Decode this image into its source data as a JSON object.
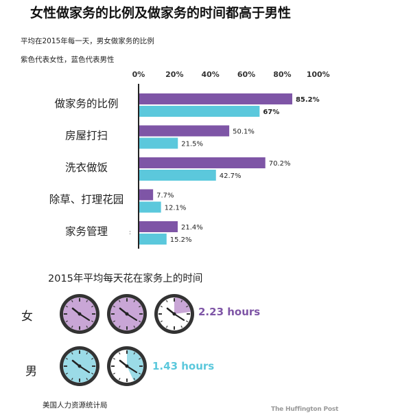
{
  "title": "女性做家务的比例及做家务的时间都高于男性",
  "subtitle_1": "平均在2015年每一天，男女做家务的比例",
  "subtitle_2": "紫色代表女性，蓝色代表男性",
  "stray_mark": ":",
  "colors": {
    "female": "#7e55a6",
    "male": "#5bc8dc",
    "axis": "#222222",
    "clock_female": "#c9a6d6",
    "clock_male": "#9bdbe7"
  },
  "chart_data": {
    "type": "bar",
    "orientation": "horizontal",
    "xlim": [
      0,
      100
    ],
    "x_ticks": [
      "0%",
      "20%",
      "40%",
      "60%",
      "80%",
      "100%"
    ],
    "categories": [
      "做家务的比例",
      "房屋打扫",
      "洗衣做饭",
      "除草、打理花园",
      "家务管理"
    ],
    "series": [
      {
        "color": "#7e55a6",
        "values": [
          85.2,
          50.1,
          70.2,
          7.7,
          21.4
        ],
        "labels": [
          "85.2%",
          "50.1%",
          "70.2%",
          "7.7%",
          "21.4%"
        ]
      },
      {
        "color": "#5bc8dc",
        "values": [
          67,
          21.5,
          42.7,
          12.1,
          15.2
        ],
        "labels": [
          "67%",
          "21.5%",
          "42.7%",
          "12.1%",
          "15.2%"
        ]
      }
    ],
    "grid": false,
    "legend": "none"
  },
  "time_section": {
    "title": "2015年平均每天花在家务上的时间",
    "rows": [
      {
        "label": "女",
        "hours": 2.23,
        "hours_text": "2.23 hours",
        "color": "#7e55a6",
        "clock_fill": "#c9a6d6"
      },
      {
        "label": "男",
        "hours": 1.43,
        "hours_text": "1.43 hours",
        "color": "#5bc8dc",
        "clock_fill": "#9bdbe7"
      }
    ]
  },
  "source": "美国人力资源统计局",
  "credit": "The Huffington Post"
}
